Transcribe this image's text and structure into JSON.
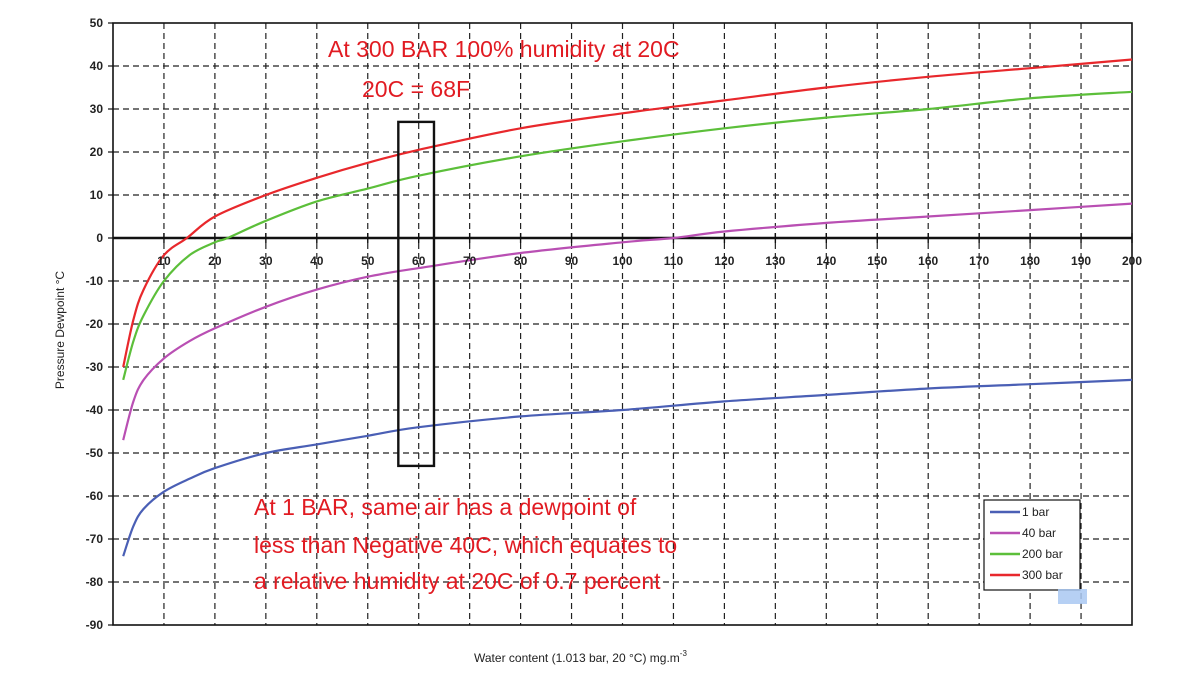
{
  "chart_data": {
    "type": "line",
    "title": "",
    "xlabel": "Water content (1.013 bar, 20 °C)   mg.m",
    "xlabel_sup": "-3",
    "ylabel": "Pressure Dewpoint  °C",
    "xlim": [
      0,
      200
    ],
    "ylim": [
      -90,
      50
    ],
    "x_ticks": [
      10,
      20,
      30,
      40,
      50,
      60,
      70,
      80,
      90,
      100,
      110,
      120,
      130,
      140,
      150,
      160,
      170,
      180,
      190,
      200
    ],
    "y_ticks": [
      50,
      40,
      30,
      20,
      10,
      0,
      -10,
      -20,
      -30,
      -40,
      -50,
      -60,
      -70,
      -80,
      -90
    ],
    "grid": true,
    "legend_position": "bottom-right",
    "series": [
      {
        "name": "1 bar",
        "color": "#4a5fb5",
        "points": [
          [
            2,
            -74
          ],
          [
            4,
            -67
          ],
          [
            6,
            -63
          ],
          [
            10,
            -59
          ],
          [
            15,
            -56
          ],
          [
            20,
            -53.5
          ],
          [
            30,
            -50
          ],
          [
            40,
            -48
          ],
          [
            50,
            -46
          ],
          [
            60,
            -44
          ],
          [
            80,
            -41.5
          ],
          [
            100,
            -40
          ],
          [
            120,
            -38
          ],
          [
            140,
            -36.5
          ],
          [
            160,
            -35
          ],
          [
            180,
            -34
          ],
          [
            200,
            -33
          ]
        ]
      },
      {
        "name": "40 bar",
        "color": "#b94fb3",
        "points": [
          [
            2,
            -47
          ],
          [
            4,
            -38
          ],
          [
            6,
            -33
          ],
          [
            10,
            -28
          ],
          [
            15,
            -24
          ],
          [
            20,
            -21
          ],
          [
            30,
            -16
          ],
          [
            40,
            -12
          ],
          [
            50,
            -9
          ],
          [
            60,
            -7
          ],
          [
            80,
            -3.5
          ],
          [
            100,
            -1
          ],
          [
            110,
            0
          ],
          [
            120,
            1.5
          ],
          [
            140,
            3.5
          ],
          [
            160,
            5
          ],
          [
            180,
            6.5
          ],
          [
            200,
            8
          ]
        ]
      },
      {
        "name": "200 bar",
        "color": "#5cbf3a",
        "points": [
          [
            2,
            -33
          ],
          [
            4,
            -24
          ],
          [
            6,
            -18
          ],
          [
            10,
            -10
          ],
          [
            15,
            -4
          ],
          [
            20,
            -1
          ],
          [
            22.5,
            0
          ],
          [
            30,
            4
          ],
          [
            40,
            8.5
          ],
          [
            50,
            11.5
          ],
          [
            60,
            14.5
          ],
          [
            80,
            19
          ],
          [
            100,
            22.5
          ],
          [
            120,
            25.5
          ],
          [
            140,
            28
          ],
          [
            160,
            30
          ],
          [
            180,
            32.5
          ],
          [
            200,
            34
          ]
        ]
      },
      {
        "name": "300 bar",
        "color": "#e8282c",
        "points": [
          [
            2,
            -30
          ],
          [
            4,
            -19
          ],
          [
            6,
            -12
          ],
          [
            10,
            -4
          ],
          [
            14.5,
            0
          ],
          [
            20,
            5
          ],
          [
            30,
            10
          ],
          [
            40,
            14
          ],
          [
            50,
            17.5
          ],
          [
            60,
            20.5
          ],
          [
            80,
            25.5
          ],
          [
            100,
            29
          ],
          [
            120,
            32
          ],
          [
            140,
            35
          ],
          [
            160,
            37.5
          ],
          [
            180,
            39.5
          ],
          [
            200,
            41.5
          ]
        ]
      }
    ]
  },
  "annotations": {
    "top_line1": "At 300 BAR 100% humidity at 20C",
    "top_line2": "20C = 68F",
    "bottom_line1": "At 1 BAR, same air has a dewpoint of",
    "bottom_line2": "less than Negative 40C, which equates to",
    "bottom_line3": "a relative humidity at 20C of 0.7 percent"
  },
  "highlight_box": {
    "x_from": 56,
    "x_to": 63,
    "y_from": -53,
    "y_to": 27
  }
}
